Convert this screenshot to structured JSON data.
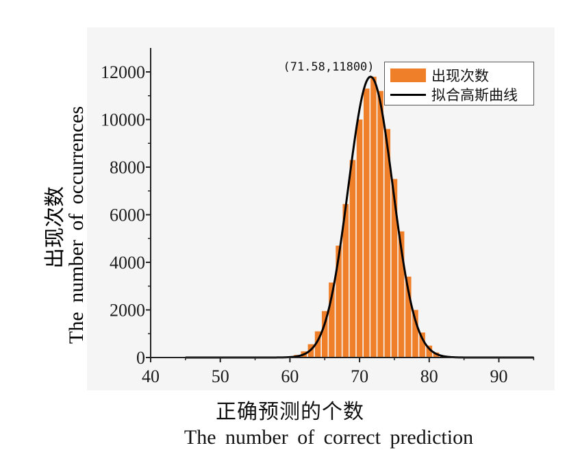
{
  "colors": {
    "bar": "#f07f2a",
    "fit_line": "#000000",
    "axis": "#222222"
  },
  "chart_data": {
    "type": "bar",
    "xlabel_zh": "正确预测的个数",
    "xlabel_en": "The number of correct prediction",
    "ylabel_zh": "出现次数",
    "ylabel_en": "The number of occurrences",
    "xlim": [
      40,
      95
    ],
    "ylim": [
      0,
      12800
    ],
    "xticks": [
      40,
      50,
      60,
      70,
      80,
      90
    ],
    "yticks": [
      0,
      2000,
      4000,
      6000,
      8000,
      10000,
      12000
    ],
    "grid": false,
    "legend_position": "top-right",
    "legend": [
      "出现次数",
      "拟合高斯曲线"
    ],
    "peak_annotation": "(71.58,11800)",
    "bins": [
      {
        "x": 60,
        "y": 40
      },
      {
        "x": 61,
        "y": 110
      },
      {
        "x": 62,
        "y": 260
      },
      {
        "x": 63,
        "y": 560
      },
      {
        "x": 64,
        "y": 1100
      },
      {
        "x": 65,
        "y": 1950
      },
      {
        "x": 66,
        "y": 3150
      },
      {
        "x": 67,
        "y": 4700
      },
      {
        "x": 68,
        "y": 6450
      },
      {
        "x": 69,
        "y": 8300
      },
      {
        "x": 70,
        "y": 10000
      },
      {
        "x": 71,
        "y": 11300
      },
      {
        "x": 72,
        "y": 11800
      },
      {
        "x": 73,
        "y": 11200
      },
      {
        "x": 74,
        "y": 9600
      },
      {
        "x": 75,
        "y": 7500
      },
      {
        "x": 76,
        "y": 5300
      },
      {
        "x": 77,
        "y": 3400
      },
      {
        "x": 78,
        "y": 2000
      },
      {
        "x": 79,
        "y": 1050
      },
      {
        "x": 80,
        "y": 500
      },
      {
        "x": 81,
        "y": 210
      },
      {
        "x": 82,
        "y": 80
      },
      {
        "x": 83,
        "y": 30
      }
    ],
    "series": [
      {
        "name": "出现次数",
        "kind": "bar"
      },
      {
        "name": "拟合高斯曲线",
        "kind": "line",
        "mean": 71.58,
        "peak": 11800,
        "sigma": 3.2,
        "x_range": [
          45,
          95
        ]
      }
    ]
  }
}
